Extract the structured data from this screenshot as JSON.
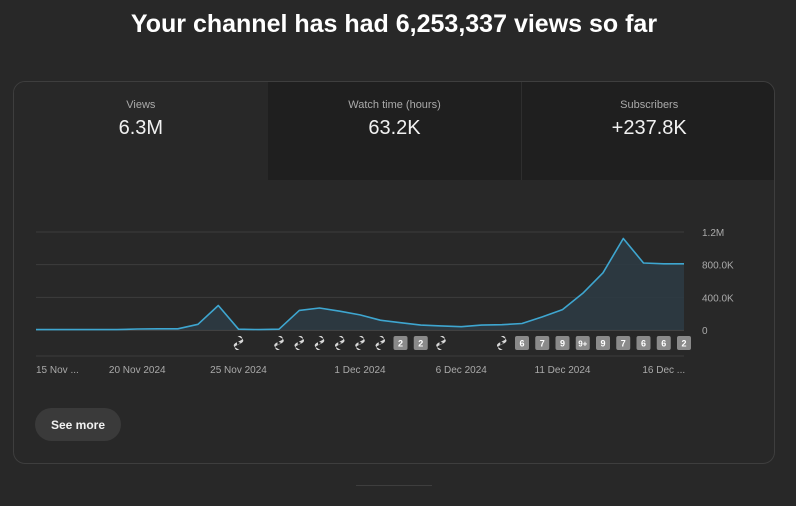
{
  "headline": "Your channel has had 6,253,337 views so far",
  "tabs": [
    {
      "label": "Views",
      "value": "6.3M",
      "active": true
    },
    {
      "label": "Watch time (hours)",
      "value": "63.2K",
      "active": false
    },
    {
      "label": "Subscribers",
      "value": "+237.8K",
      "active": false
    }
  ],
  "see_more_label": "See more",
  "colors": {
    "background": "#282828",
    "line": "#3ea6d0",
    "fill": "#2c3a42",
    "badge": "#8a8a8a"
  },
  "chart_data": {
    "type": "area",
    "x": [
      "15 Nov",
      "16 Nov",
      "17 Nov",
      "18 Nov",
      "19 Nov",
      "20 Nov",
      "21 Nov",
      "22 Nov",
      "23 Nov",
      "24 Nov",
      "25 Nov",
      "26 Nov",
      "27 Nov",
      "28 Nov",
      "29 Nov",
      "30 Nov",
      "1 Dec",
      "2 Dec",
      "3 Dec",
      "4 Dec",
      "5 Dec",
      "6 Dec",
      "7 Dec",
      "8 Dec",
      "9 Dec",
      "10 Dec",
      "11 Dec",
      "12 Dec",
      "13 Dec",
      "14 Dec",
      "15 Dec",
      "16 Dec",
      "17 Dec"
    ],
    "series": [
      {
        "values": [
          5000,
          5000,
          5000,
          5000,
          5000,
          12000,
          15000,
          15000,
          70000,
          300000,
          10000,
          5000,
          10000,
          240000,
          270000,
          230000,
          185000,
          120000,
          90000,
          60000,
          50000,
          40000,
          60000,
          65000,
          80000,
          160000,
          250000,
          450000,
          700000,
          1120000,
          820000,
          810000,
          810000
        ]
      }
    ],
    "y_ticks": [
      "1.2M",
      "800.0K",
      "400.0K",
      "0"
    ],
    "y_tick_values": [
      1200000,
      800000,
      400000,
      0
    ],
    "ylim": [
      0,
      1200000
    ],
    "x_tick_labels": [
      "15 Nov ...",
      "20 Nov 2024",
      "25 Nov 2024",
      "1 Dec 2024",
      "6 Dec 2024",
      "11 Dec 2024",
      "16 Dec ..."
    ],
    "x_tick_days": [
      "15 Nov",
      "20 Nov",
      "25 Nov",
      "1 Dec",
      "6 Dec",
      "11 Dec",
      "16 Dec"
    ],
    "grid": true,
    "axis_side": "right",
    "markers": [
      {
        "day": "25 Nov",
        "kind": "shorts-icon"
      },
      {
        "day": "27 Nov",
        "kind": "shorts-icon"
      },
      {
        "day": "28 Nov",
        "kind": "shorts-icon"
      },
      {
        "day": "29 Nov",
        "kind": "shorts-icon"
      },
      {
        "day": "30 Nov",
        "kind": "shorts-icon"
      },
      {
        "day": "1 Dec",
        "kind": "shorts-icon"
      },
      {
        "day": "2 Dec",
        "kind": "shorts-icon"
      },
      {
        "day": "3 Dec",
        "kind": "count",
        "text": "2"
      },
      {
        "day": "4 Dec",
        "kind": "count",
        "text": "2"
      },
      {
        "day": "5 Dec",
        "kind": "shorts-icon"
      },
      {
        "day": "8 Dec",
        "kind": "shorts-icon"
      },
      {
        "day": "9 Dec",
        "kind": "count",
        "text": "6"
      },
      {
        "day": "10 Dec",
        "kind": "count",
        "text": "7"
      },
      {
        "day": "11 Dec",
        "kind": "count",
        "text": "9"
      },
      {
        "day": "12 Dec",
        "kind": "count",
        "text": "9+"
      },
      {
        "day": "13 Dec",
        "kind": "count",
        "text": "9"
      },
      {
        "day": "14 Dec",
        "kind": "count",
        "text": "7"
      },
      {
        "day": "15 Dec",
        "kind": "count",
        "text": "6"
      },
      {
        "day": "16 Dec",
        "kind": "count",
        "text": "6"
      },
      {
        "day": "17 Dec",
        "kind": "count",
        "text": "2"
      }
    ]
  }
}
